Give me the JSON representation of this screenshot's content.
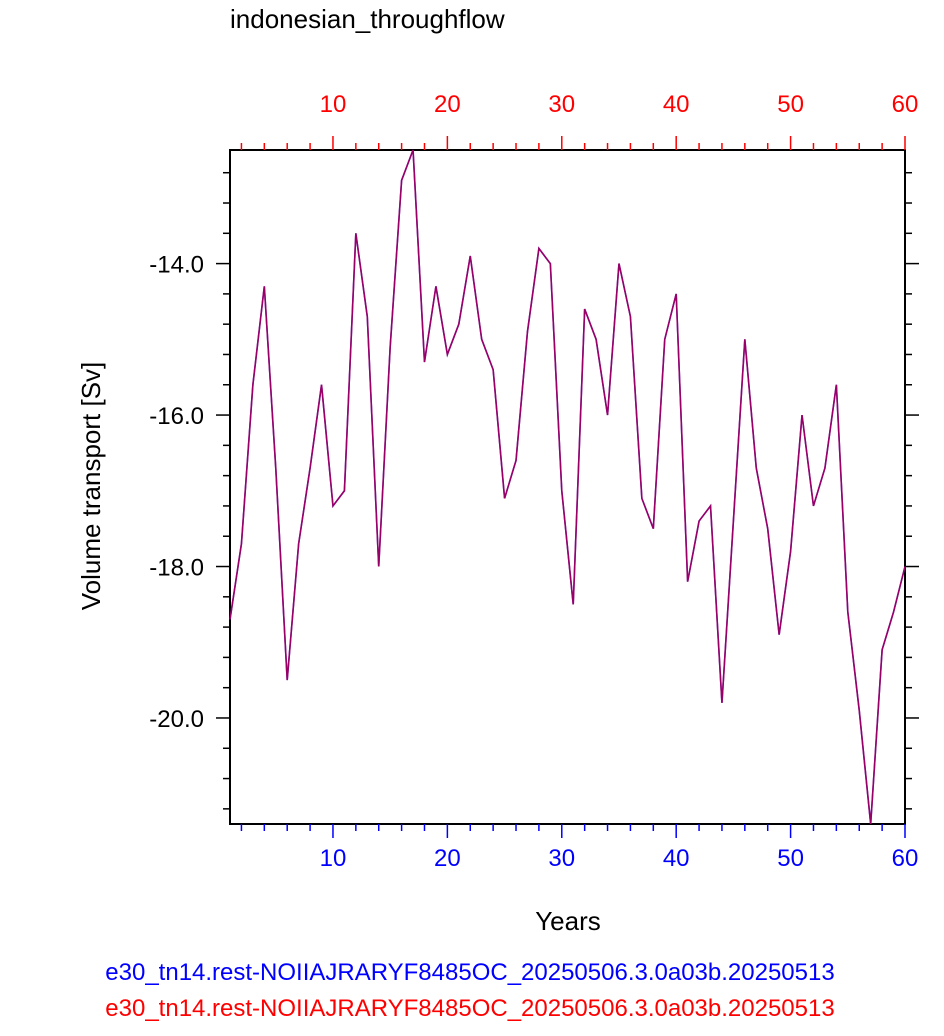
{
  "chart_data": {
    "type": "line",
    "title": "indonesian_throughflow",
    "xlabel": "Years",
    "ylabel": "Volume transport [Sv]",
    "xlim": [
      1,
      60
    ],
    "ylim": [
      -21.4,
      -12.5
    ],
    "x_ticks": [
      10,
      20,
      30,
      40,
      50,
      60
    ],
    "y_ticks": [
      -14.0,
      -16.0,
      -18.0,
      -20.0
    ],
    "y_tick_labels": [
      "-14.0",
      "-16.0",
      "-18.0",
      "-20.0"
    ],
    "top_axis_color": "#ff0000",
    "bottom_axis_color": "#0000ff",
    "x": [
      1,
      2,
      3,
      4,
      5,
      6,
      7,
      8,
      9,
      10,
      11,
      12,
      13,
      14,
      15,
      16,
      17,
      18,
      19,
      20,
      21,
      22,
      23,
      24,
      25,
      26,
      27,
      28,
      29,
      30,
      31,
      32,
      33,
      34,
      35,
      36,
      37,
      38,
      39,
      40,
      41,
      42,
      43,
      44,
      45,
      46,
      47,
      48,
      49,
      50,
      51,
      52,
      53,
      54,
      55,
      56,
      57,
      58,
      59,
      60
    ],
    "series": [
      {
        "name": "e30_tn14.rest-NOIIAJRARYF8485OC_20250506.3.0a03b.20250513",
        "color": "#0000ff",
        "values": [
          -18.7,
          -17.7,
          -15.6,
          -14.3,
          -16.7,
          -19.5,
          -17.7,
          -16.7,
          -15.6,
          -17.2,
          -17.0,
          -13.6,
          -14.7,
          -18.0,
          -15.1,
          -12.9,
          -12.5,
          -15.3,
          -14.3,
          -15.2,
          -14.8,
          -13.9,
          -15.0,
          -15.4,
          -17.1,
          -16.6,
          -14.9,
          -13.8,
          -14.0,
          -17.0,
          -18.5,
          -14.6,
          -15.0,
          -16.0,
          -14.0,
          -14.7,
          -17.1,
          -17.5,
          -15.0,
          -14.4,
          -18.2,
          -17.4,
          -17.2,
          -19.8,
          -17.4,
          -15.0,
          -16.7,
          -17.5,
          -18.9,
          -17.8,
          -16.0,
          -17.2,
          -16.7,
          -15.6,
          -18.6,
          -19.9,
          -21.4,
          -19.1,
          -18.6,
          -18.0
        ]
      },
      {
        "name": "e30_tn14.rest-NOIIAJRARYF8485OC_20250506.3.0a03b.20250513",
        "color": "#ff0000",
        "values": [
          -18.7,
          -17.7,
          -15.6,
          -14.3,
          -16.7,
          -19.5,
          -17.7,
          -16.7,
          -15.6,
          -17.2,
          -17.0,
          -13.6,
          -14.7,
          -18.0,
          -15.1,
          -12.9,
          -12.5,
          -15.3,
          -14.3,
          -15.2,
          -14.8,
          -13.9,
          -15.0,
          -15.4,
          -17.1,
          -16.6,
          -14.9,
          -13.8,
          -14.0,
          -17.0,
          -18.5,
          -14.6,
          -15.0,
          -16.0,
          -14.0,
          -14.7,
          -17.1,
          -17.5,
          -15.0,
          -14.4,
          -18.2,
          -17.4,
          -17.2,
          -19.8,
          -17.4,
          -15.0,
          -16.7,
          -17.5,
          -18.9,
          -17.8,
          -16.0,
          -17.2,
          -16.7,
          -15.6,
          -18.6,
          -19.9,
          -21.4,
          -19.1,
          -18.6,
          -18.0
        ]
      }
    ]
  }
}
